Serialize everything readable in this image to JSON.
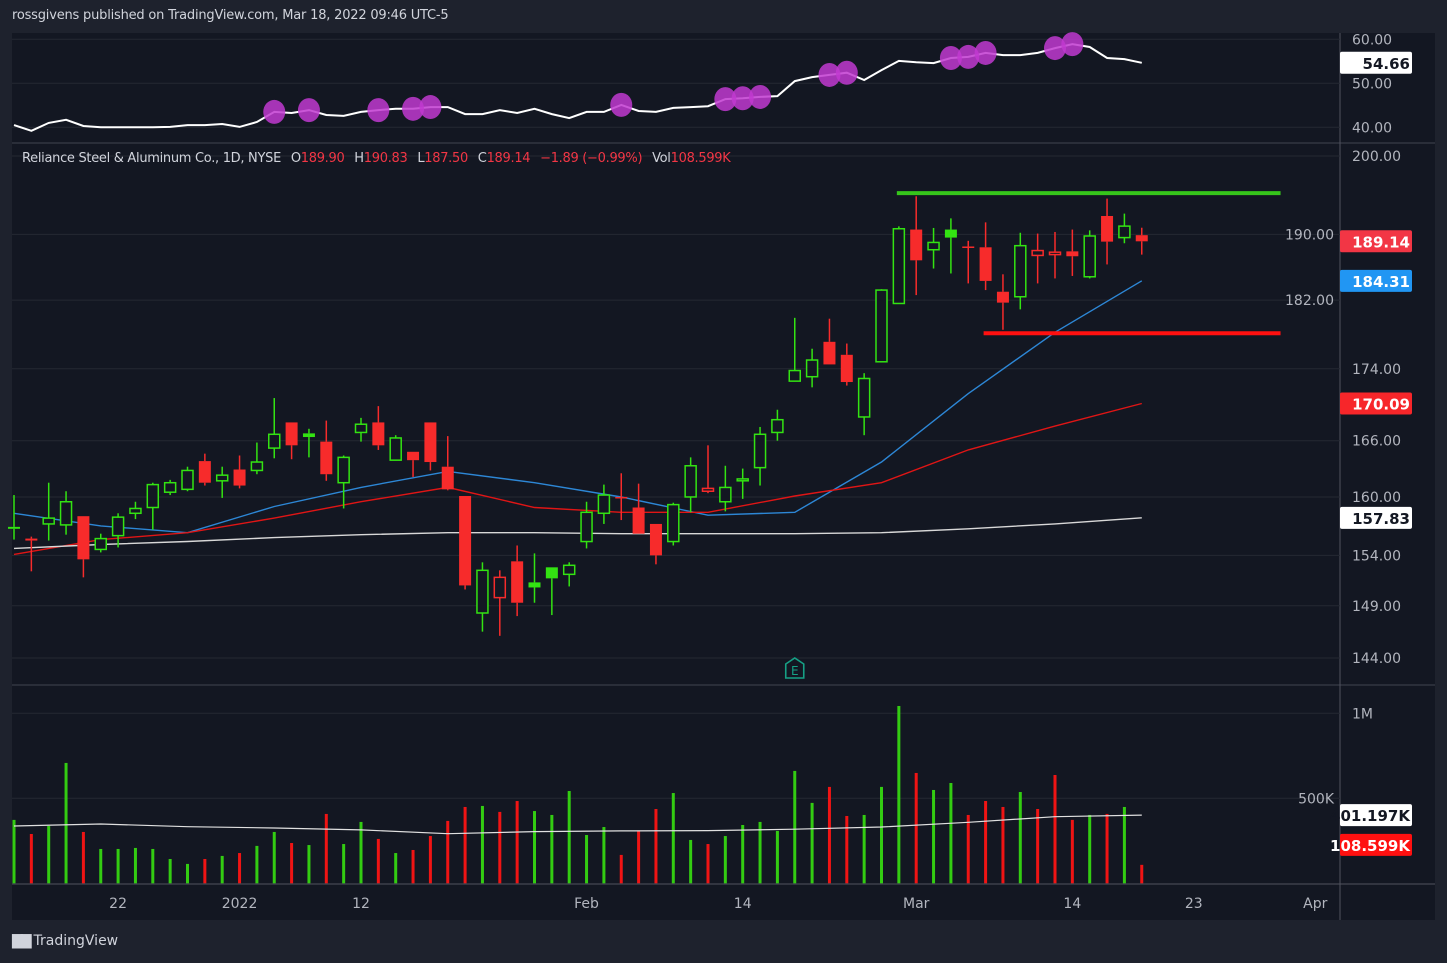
{
  "publisher_line": "rossgivens published on TradingView.com, Mar 18, 2022 09:46 UTC-5",
  "brand": "TradingView",
  "legend": {
    "symbol": "Reliance Steel & Aluminum Co., 1D, NYSE",
    "o_key": "O",
    "o": "189.90",
    "h_key": "H",
    "h": "190.83",
    "l_key": "L",
    "l": "187.50",
    "c_key": "C",
    "c": "189.14",
    "change": "−1.89 (−0.99%)",
    "vol_key": "Vol",
    "vol": "108.599K"
  },
  "colors": {
    "background": "#131722",
    "frame": "#1e222d",
    "grid": "#242833",
    "up": "#33e312",
    "down": "#f72b2b",
    "vol_up": "#33cc12",
    "vol_down": "#f01414",
    "ma_fast": "#2d87d6",
    "ma_mid": "#e01515",
    "ma_slow": "#d8d8d8",
    "vol_ma": "#e0e0e0",
    "indicator_line": "#ffffff",
    "indicator_dot": "#c13ad0",
    "support_line": "#ff1010",
    "resistance_line": "#36c51b",
    "earnings": "#16a085"
  },
  "chart_data": {
    "type": "candlestick",
    "scale": "log",
    "grid": true,
    "ylim": [
      142,
      202
    ],
    "y_ticks": [
      "200.00",
      "190.00",
      "182.00",
      "174.00",
      "166.00",
      "160.00",
      "154.00",
      "149.00",
      "144.00"
    ],
    "x_ticks": [
      {
        "label": "22",
        "date": "2021-12-22"
      },
      {
        "label": "2022",
        "date": "2022-01-03"
      },
      {
        "label": "12",
        "date": "2022-01-12"
      },
      {
        "label": "Feb",
        "date": "2022-02-01"
      },
      {
        "label": "14",
        "date": "2022-02-14"
      },
      {
        "label": "Mar",
        "date": "2022-03-01"
      },
      {
        "label": "14",
        "date": "2022-03-14"
      },
      {
        "label": "23",
        "date": "2022-03-23"
      },
      {
        "label": "Apr",
        "date": "2022-04-01"
      }
    ],
    "ohlcv_columns": [
      "date",
      "open",
      "high",
      "low",
      "close",
      "volume"
    ],
    "ohlcv": [
      [
        "2021-12-14",
        156.9,
        160.2,
        155.6,
        156.7,
        373000
      ],
      [
        "2021-12-15",
        155.7,
        155.9,
        152.4,
        155.5,
        290000
      ],
      [
        "2021-12-16",
        157.2,
        161.5,
        155.5,
        157.8,
        337000
      ],
      [
        "2021-12-17",
        157.1,
        160.6,
        156.1,
        159.5,
        708000
      ],
      [
        "2021-12-20",
        158.0,
        158.0,
        151.8,
        153.6,
        302000
      ],
      [
        "2021-12-21",
        154.6,
        156.2,
        154.3,
        155.7,
        202000
      ],
      [
        "2021-12-22",
        156.0,
        158.3,
        154.8,
        157.9,
        202000
      ],
      [
        "2021-12-23",
        158.3,
        159.5,
        157.7,
        158.8,
        208000
      ],
      [
        "2021-12-27",
        158.9,
        161.5,
        156.6,
        161.3,
        202000
      ],
      [
        "2021-12-28",
        160.5,
        161.8,
        160.2,
        161.5,
        143000
      ],
      [
        "2021-12-29",
        160.8,
        163.2,
        160.6,
        162.8,
        114000
      ],
      [
        "2021-12-30",
        163.8,
        164.6,
        161.2,
        161.5,
        143000
      ],
      [
        "2021-12-31",
        161.7,
        163.2,
        159.9,
        162.3,
        161000
      ],
      [
        "2022-01-03",
        162.9,
        164.4,
        160.9,
        161.2,
        178000
      ],
      [
        "2022-01-04",
        162.8,
        165.8,
        162.4,
        163.7,
        220000
      ],
      [
        "2022-01-05",
        165.2,
        170.7,
        164.1,
        166.7,
        302000
      ],
      [
        "2022-01-06",
        168.0,
        168.0,
        164.0,
        165.5,
        237000
      ],
      [
        "2022-01-07",
        166.8,
        167.3,
        164.2,
        166.4,
        225000
      ],
      [
        "2022-01-10",
        165.9,
        168.2,
        161.7,
        162.4,
        408000
      ],
      [
        "2022-01-11",
        161.5,
        164.4,
        158.8,
        164.2,
        231000
      ],
      [
        "2022-01-12",
        166.9,
        168.5,
        165.9,
        167.8,
        361000
      ],
      [
        "2022-01-13",
        168.0,
        169.8,
        165.0,
        165.5,
        261000
      ],
      [
        "2022-01-14",
        163.9,
        166.6,
        163.9,
        166.3,
        178000
      ],
      [
        "2022-01-18",
        164.8,
        164.8,
        162.1,
        163.9,
        196000
      ],
      [
        "2022-01-19",
        168.0,
        168.0,
        162.8,
        163.7,
        278000
      ],
      [
        "2022-01-20",
        163.2,
        166.5,
        160.7,
        160.8,
        367000
      ],
      [
        "2022-01-21",
        160.1,
        160.1,
        150.6,
        151.0,
        449000
      ],
      [
        "2022-01-24",
        148.3,
        153.3,
        146.5,
        152.5,
        455000
      ],
      [
        "2022-01-25",
        149.8,
        152.5,
        146.1,
        151.8,
        420000
      ],
      [
        "2022-01-26",
        153.4,
        155.0,
        148.0,
        149.3,
        484000
      ],
      [
        "2022-01-27",
        151.3,
        154.2,
        149.3,
        150.8,
        425000
      ],
      [
        "2022-01-28",
        152.8,
        152.8,
        148.1,
        151.7,
        402000
      ],
      [
        "2022-01-31",
        152.1,
        153.3,
        150.9,
        153.0,
        543000
      ],
      [
        "2022-02-01",
        155.4,
        159.5,
        154.7,
        158.4,
        284000
      ],
      [
        "2022-02-02",
        158.3,
        161.3,
        157.2,
        160.2,
        331000
      ],
      [
        "2022-02-03",
        160.0,
        162.5,
        157.6,
        159.9,
        167000
      ],
      [
        "2022-02-04",
        158.9,
        161.4,
        156.2,
        156.2,
        308000
      ],
      [
        "2022-02-07",
        157.2,
        157.2,
        153.1,
        154.0,
        437000
      ],
      [
        "2022-02-08",
        155.4,
        159.4,
        155.0,
        159.2,
        531000
      ],
      [
        "2022-02-09",
        160.0,
        164.2,
        158.4,
        163.3,
        255000
      ],
      [
        "2022-02-10",
        160.6,
        165.5,
        160.4,
        160.9,
        231000
      ],
      [
        "2022-02-11",
        159.5,
        163.3,
        158.5,
        161.0,
        278000
      ],
      [
        "2022-02-14",
        161.7,
        163.0,
        159.8,
        161.9,
        343000
      ],
      [
        "2022-02-15",
        163.1,
        167.5,
        161.2,
        166.7,
        361000
      ],
      [
        "2022-02-16",
        166.9,
        169.4,
        166.0,
        168.3,
        308000
      ],
      [
        "2022-02-17",
        172.6,
        179.9,
        172.6,
        173.8,
        661000
      ],
      [
        "2022-02-18",
        173.1,
        176.3,
        171.9,
        175.0,
        473000
      ],
      [
        "2022-02-22",
        177.1,
        179.8,
        174.5,
        174.5,
        567000
      ],
      [
        "2022-02-23",
        175.6,
        176.9,
        172.1,
        172.5,
        396000
      ],
      [
        "2022-02-24",
        168.6,
        173.5,
        166.6,
        172.9,
        402000
      ],
      [
        "2022-02-25",
        174.8,
        183.3,
        174.8,
        183.2,
        567000
      ],
      [
        "2022-02-28",
        181.6,
        191.0,
        181.6,
        190.7,
        1043000
      ],
      [
        "2022-03-01",
        190.6,
        194.8,
        182.6,
        186.8,
        649000
      ],
      [
        "2022-03-02",
        188.1,
        190.8,
        185.8,
        189.0,
        549000
      ],
      [
        "2022-03-03",
        190.6,
        192.0,
        185.2,
        189.6,
        590000
      ],
      [
        "2022-03-04",
        188.5,
        189.2,
        184.0,
        188.4,
        402000
      ],
      [
        "2022-03-07",
        188.4,
        191.5,
        183.2,
        184.3,
        484000
      ],
      [
        "2022-03-08",
        183.0,
        185.1,
        178.5,
        181.7,
        449000
      ],
      [
        "2022-03-09",
        182.4,
        190.2,
        180.9,
        188.6,
        537000
      ],
      [
        "2022-03-10",
        187.4,
        190.1,
        184.0,
        188.0,
        437000
      ],
      [
        "2022-03-11",
        187.5,
        190.3,
        184.6,
        187.8,
        637000
      ],
      [
        "2022-03-14",
        187.9,
        190.6,
        184.9,
        187.3,
        373000
      ],
      [
        "2022-03-15",
        184.8,
        190.5,
        184.6,
        189.8,
        402000
      ],
      [
        "2022-03-16",
        192.3,
        194.5,
        186.3,
        189.1,
        408000
      ],
      [
        "2022-03-17",
        189.6,
        192.6,
        188.9,
        191.03,
        449000
      ],
      [
        "2022-03-18",
        189.9,
        190.83,
        187.5,
        189.14,
        108599
      ]
    ],
    "moving_averages": [
      {
        "role": "fast",
        "last": "184.31",
        "points": [
          [
            "2021-12-14",
            158.3
          ],
          [
            "2021-12-21",
            157.0
          ],
          [
            "2021-12-29",
            156.3
          ],
          [
            "2022-01-05",
            159.0
          ],
          [
            "2022-01-12",
            161.0
          ],
          [
            "2022-01-20",
            162.7
          ],
          [
            "2022-01-27",
            161.5
          ],
          [
            "2022-02-03",
            160.0
          ],
          [
            "2022-02-10",
            158.1
          ],
          [
            "2022-02-17",
            158.4
          ],
          [
            "2022-02-25",
            163.7
          ],
          [
            "2022-03-04",
            171.2
          ],
          [
            "2022-03-11",
            178.2
          ],
          [
            "2022-03-18",
            184.31
          ]
        ]
      },
      {
        "role": "mid",
        "last": "170.09",
        "points": [
          [
            "2021-12-14",
            154.1
          ],
          [
            "2021-12-21",
            155.6
          ],
          [
            "2021-12-29",
            156.3
          ],
          [
            "2022-01-05",
            157.8
          ],
          [
            "2022-01-12",
            159.5
          ],
          [
            "2022-01-20",
            161.0
          ],
          [
            "2022-01-27",
            158.9
          ],
          [
            "2022-02-03",
            158.4
          ],
          [
            "2022-02-10",
            158.4
          ],
          [
            "2022-02-17",
            160.1
          ],
          [
            "2022-02-25",
            161.5
          ],
          [
            "2022-03-04",
            165.0
          ],
          [
            "2022-03-11",
            167.6
          ],
          [
            "2022-03-18",
            170.09
          ]
        ]
      },
      {
        "role": "slow",
        "last": "157.83",
        "points": [
          [
            "2021-12-14",
            154.7
          ],
          [
            "2021-12-21",
            155.1
          ],
          [
            "2021-12-29",
            155.4
          ],
          [
            "2022-01-05",
            155.8
          ],
          [
            "2022-01-12",
            156.1
          ],
          [
            "2022-01-20",
            156.3
          ],
          [
            "2022-01-27",
            156.3
          ],
          [
            "2022-02-03",
            156.2
          ],
          [
            "2022-02-10",
            156.2
          ],
          [
            "2022-02-17",
            156.2
          ],
          [
            "2022-02-25",
            156.3
          ],
          [
            "2022-03-04",
            156.7
          ],
          [
            "2022-03-11",
            157.2
          ],
          [
            "2022-03-18",
            157.83
          ]
        ]
      }
    ],
    "horizontal_lines": [
      {
        "role": "resistance",
        "price": 195.2,
        "from": "2022-02-28",
        "to": "2022-03-30"
      },
      {
        "role": "support",
        "price": 178.1,
        "from": "2022-03-07",
        "to": "2022-03-30"
      }
    ],
    "earnings_marker": {
      "date": "2022-02-17",
      "label": "E"
    },
    "last_price_label": "189.14",
    "volume": {
      "y_ticks": [
        "1M",
        "500K"
      ],
      "ma_last": "401.197K",
      "last_label": "108.599K",
      "ma_points": [
        [
          "2021-12-14",
          337000
        ],
        [
          "2021-12-21",
          349000
        ],
        [
          "2021-12-29",
          333000
        ],
        [
          "2022-01-05",
          325000
        ],
        [
          "2022-01-12",
          314000
        ],
        [
          "2022-01-20",
          292000
        ],
        [
          "2022-01-27",
          304000
        ],
        [
          "2022-02-03",
          308000
        ],
        [
          "2022-02-10",
          310000
        ],
        [
          "2022-02-17",
          318000
        ],
        [
          "2022-02-25",
          331000
        ],
        [
          "2022-03-04",
          359000
        ],
        [
          "2022-03-11",
          392000
        ],
        [
          "2022-03-18",
          401197
        ]
      ]
    },
    "indicator": {
      "ylim": [
        38,
        62
      ],
      "y_ticks": [
        "60.00",
        "50.00",
        "40.00"
      ],
      "last_label": "54.66",
      "values": [
        40.5,
        39.2,
        41.0,
        41.7,
        40.3,
        40.0,
        40.0,
        40.0,
        40.0,
        40.1,
        40.5,
        40.5,
        40.75,
        40.1,
        41.2,
        43.5,
        43.25,
        43.9,
        42.8,
        42.6,
        43.5,
        43.9,
        44.2,
        44.2,
        44.6,
        44.6,
        43.0,
        43.0,
        43.9,
        43.25,
        44.2,
        43.0,
        42.1,
        43.5,
        43.5,
        45.1,
        43.7,
        43.5,
        44.4,
        44.6,
        44.8,
        46.4,
        46.6,
        46.9,
        47.1,
        50.5,
        51.4,
        51.9,
        52.4,
        50.75,
        53.0,
        55.1,
        54.8,
        54.6,
        55.75,
        56.0,
        56.9,
        56.4,
        56.4,
        56.9,
        58.0,
        58.9,
        58.25,
        55.75,
        55.5,
        54.66
      ],
      "highlighted_dates": [
        "2022-01-05",
        "2022-01-07",
        "2022-01-13",
        "2022-01-18",
        "2022-01-19",
        "2022-02-03",
        "2022-02-11",
        "2022-02-14",
        "2022-02-15",
        "2022-02-22",
        "2022-02-23",
        "2022-03-03",
        "2022-03-04",
        "2022-03-07",
        "2022-03-11",
        "2022-03-14"
      ]
    }
  }
}
